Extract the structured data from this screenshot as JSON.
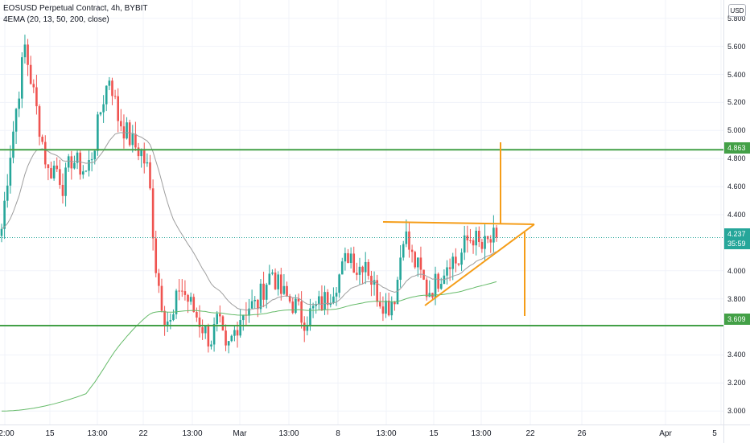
{
  "header": {
    "title": "EOSUSD Perpetual Contract, 4h, BYBIT",
    "indicator": "4EMA (20, 13, 50, 200, close)"
  },
  "currency_button": "USD",
  "price_axis": [
    "5.800",
    "5.600",
    "5.400",
    "5.200",
    "5.000",
    "4.800",
    "4.600",
    "4.400",
    "4.000",
    "3.800",
    "3.400",
    "3.200",
    "3.000"
  ],
  "time_axis": [
    "2:00",
    "15",
    "13:00",
    "22",
    "13:00",
    "Mar",
    "13:00",
    "8",
    "13:00",
    "15",
    "13:00",
    "22",
    "26",
    "Apr",
    "5"
  ],
  "price_labels": {
    "resistance": "4.863",
    "support": "3.609",
    "current": "4.237",
    "countdown": "35:59"
  },
  "colors": {
    "up": "#26a69a",
    "down": "#ef5350",
    "level": "#43a047",
    "drawing": "#f59d18",
    "ema200": "#66bb6a",
    "ema50": "#9e9e9e",
    "current": "#26a69a"
  },
  "chart_data": {
    "type": "candlestick",
    "symbol": "EOSUSD",
    "interval": "4h",
    "ylim": [
      2.95,
      5.85
    ],
    "close_path": [
      4.3,
      4.8,
      5.2,
      5.6,
      5.3,
      5.0,
      4.7,
      4.75,
      4.6,
      4.8,
      4.75,
      4.7,
      4.9,
      5.2,
      5.4,
      5.1,
      5.0,
      4.9,
      4.85,
      4.7,
      4.0,
      3.7,
      3.6,
      3.9,
      3.8,
      3.7,
      3.6,
      3.5,
      3.65,
      3.4,
      3.55,
      3.7,
      3.75,
      3.75,
      3.9,
      4.0,
      3.85,
      3.8,
      3.75,
      3.65,
      3.7,
      3.75,
      3.8,
      3.9,
      4.0,
      4.15,
      4.0,
      4.1,
      3.9,
      3.8,
      3.75,
      3.85,
      4.3,
      4.1,
      4.0,
      3.85,
      3.9,
      4.0,
      4.1,
      4.05,
      4.2,
      4.25,
      4.15,
      4.2,
      4.237
    ],
    "levels": [
      4.863,
      3.609
    ],
    "current_price": 4.237
  }
}
